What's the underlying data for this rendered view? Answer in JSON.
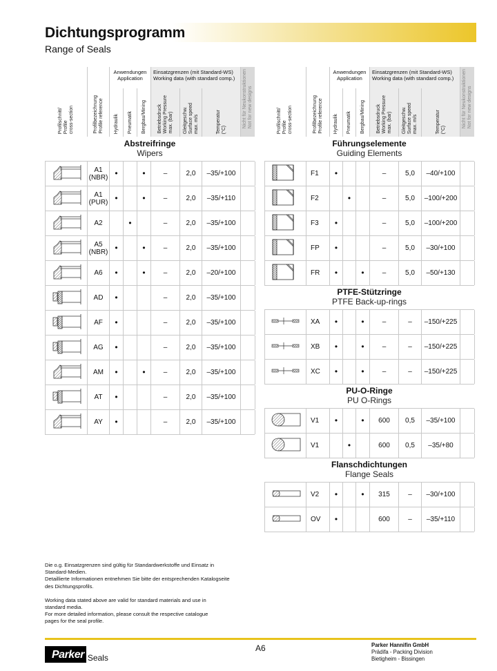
{
  "header": {
    "title": "Dichtungsprogramm",
    "subtitle": "Range of Seals",
    "accent_color": "#ecc62a"
  },
  "columns": {
    "profile": "Profilschnitt/\nProfile\ncross-section",
    "reference": "Profilbezeichnung\nProfile reference",
    "application_group": "Anwendungen\nApplication",
    "hydraulik": "Hydraulik",
    "pneumatik": "Pneumatik",
    "bergbau": "Bergbau/Mining",
    "working_group": "Einsatzgrenzen (mit Standard-WS)\nWorking data (with standard comp.)",
    "pressure": "Betriebsdruck\nWorking Pressure\nmax. (bar)",
    "speed": "Gleitgeschw.\nSurface speed\nmax. m/s",
    "temperature": "Temperatur\n(°C)",
    "not_new": "Nicht für Neukonstruktionen\nNot for new designs"
  },
  "sections": [
    {
      "de": "Abstreifringe",
      "en": "Wipers",
      "side": "left",
      "rows": [
        {
          "ref": "A1\n(NBR)",
          "icon": "wiper-icon",
          "hyd": true,
          "pneu": false,
          "berg": true,
          "pressure": "–",
          "speed": "2,0",
          "temp": "–35/+100"
        },
        {
          "ref": "A1\n(PUR)",
          "icon": "wiper-icon",
          "hyd": true,
          "pneu": false,
          "berg": true,
          "pressure": "–",
          "speed": "2,0",
          "temp": "–35/+110"
        },
        {
          "ref": "A2",
          "icon": "wiper-icon",
          "hyd": false,
          "pneu": true,
          "berg": false,
          "pressure": "–",
          "speed": "2,0",
          "temp": "–35/+100"
        },
        {
          "ref": "A5\n(NBR)",
          "icon": "wiper-icon",
          "hyd": true,
          "pneu": false,
          "berg": true,
          "pressure": "–",
          "speed": "2,0",
          "temp": "–35/+100"
        },
        {
          "ref": "A6",
          "icon": "wiper-icon",
          "hyd": true,
          "pneu": false,
          "berg": true,
          "pressure": "–",
          "speed": "2,0",
          "temp": "–20/+100"
        },
        {
          "ref": "AD",
          "icon": "double-wiper-icon",
          "hyd": true,
          "pneu": false,
          "berg": false,
          "pressure": "–",
          "speed": "2,0",
          "temp": "–35/+100"
        },
        {
          "ref": "AF",
          "icon": "double-wiper-icon",
          "hyd": true,
          "pneu": false,
          "berg": false,
          "pressure": "–",
          "speed": "2,0",
          "temp": "–35/+100"
        },
        {
          "ref": "AG",
          "icon": "double-wiper-icon",
          "hyd": true,
          "pneu": false,
          "berg": false,
          "pressure": "–",
          "speed": "2,0",
          "temp": "–35/+100"
        },
        {
          "ref": "AM",
          "icon": "wiper-icon",
          "hyd": true,
          "pneu": false,
          "berg": true,
          "pressure": "–",
          "speed": "2,0",
          "temp": "–35/+100"
        },
        {
          "ref": "AT",
          "icon": "double-wiper-icon",
          "hyd": true,
          "pneu": false,
          "berg": false,
          "pressure": "–",
          "speed": "2,0",
          "temp": "–35/+100"
        },
        {
          "ref": "AY",
          "icon": "wiper-icon",
          "hyd": true,
          "pneu": false,
          "berg": false,
          "pressure": "–",
          "speed": "2,0",
          "temp": "–35/+100"
        }
      ]
    },
    {
      "de": "Führungselemente",
      "en": "Guiding Elements",
      "side": "right",
      "rows": [
        {
          "ref": "F1",
          "icon": "guide-ring-icon",
          "hyd": true,
          "pneu": false,
          "berg": false,
          "pressure": "–",
          "speed": "5,0",
          "temp": "–40/+100"
        },
        {
          "ref": "F2",
          "icon": "guide-ring-icon",
          "hyd": false,
          "pneu": true,
          "berg": false,
          "pressure": "–",
          "speed": "5,0",
          "temp": "–100/+200"
        },
        {
          "ref": "F3",
          "icon": "guide-ring-icon",
          "hyd": true,
          "pneu": false,
          "berg": false,
          "pressure": "–",
          "speed": "5,0",
          "temp": "–100/+200"
        },
        {
          "ref": "FP",
          "icon": "guide-ring-icon",
          "hyd": true,
          "pneu": false,
          "berg": false,
          "pressure": "–",
          "speed": "5,0",
          "temp": "–30/+100"
        },
        {
          "ref": "FR",
          "icon": "guide-ring-icon",
          "hyd": true,
          "pneu": false,
          "berg": true,
          "pressure": "–",
          "speed": "5,0",
          "temp": "–50/+130"
        }
      ]
    },
    {
      "de": "PTFE-Stützringe",
      "en": "PTFE Back-up-rings",
      "side": "right",
      "rows": [
        {
          "ref": "XA",
          "icon": "backup-ring-icon",
          "hyd": true,
          "pneu": false,
          "berg": true,
          "pressure": "–",
          "speed": "–",
          "temp": "–150/+225"
        },
        {
          "ref": "XB",
          "icon": "backup-ring-icon",
          "hyd": true,
          "pneu": false,
          "berg": true,
          "pressure": "–",
          "speed": "–",
          "temp": "–150/+225"
        },
        {
          "ref": "XC",
          "icon": "backup-ring-icon",
          "hyd": true,
          "pneu": false,
          "berg": true,
          "pressure": "–",
          "speed": "–",
          "temp": "–150/+225"
        }
      ]
    },
    {
      "de": "PU-O-Ringe",
      "en": "PU O-Rings",
      "side": "right",
      "rows": [
        {
          "ref": "V1",
          "icon": "o-ring-icon",
          "hyd": true,
          "pneu": false,
          "berg": true,
          "pressure": "600",
          "speed": "0,5",
          "temp": "–35/+100"
        },
        {
          "ref": "V1",
          "icon": "o-ring-icon",
          "hyd": false,
          "pneu": true,
          "berg": false,
          "pressure": "600",
          "speed": "0,5",
          "temp": "–35/+80"
        }
      ]
    },
    {
      "de": "Flanschdichtungen",
      "en": "Flange Seals",
      "side": "right",
      "rows": [
        {
          "ref": "V2",
          "icon": "flange-seal-icon",
          "hyd": true,
          "pneu": false,
          "berg": true,
          "pressure": "315",
          "speed": "–",
          "temp": "–30/+100"
        },
        {
          "ref": "OV",
          "icon": "flange-seal-icon",
          "hyd": true,
          "pneu": false,
          "berg": false,
          "pressure": "600",
          "speed": "–",
          "temp": "–35/+110"
        }
      ]
    }
  ],
  "dot_symbol": "•",
  "notes": [
    "Die o.g. Einsatzgrenzen sind gültig für Standardwerkstoffe und Einsatz in\nStandard-Medien.\nDetaillierte Informationen entnehmen Sie bitte der entsprechenden Katalogseite\ndes Dichtungsprofils.",
    "Working data stated above are valid for standard materials and use in\nstandard media.\nFor more detailed information, please consult the respective catalogue\npages for the seal profile."
  ],
  "footer": {
    "logo_text": "Parker",
    "logo_suffix": "Seals",
    "page": "A6",
    "company": "Parker Hannifin GmbH",
    "division": "Prädifa - Packing Division",
    "location": "Bietigheim - Bissingen"
  }
}
